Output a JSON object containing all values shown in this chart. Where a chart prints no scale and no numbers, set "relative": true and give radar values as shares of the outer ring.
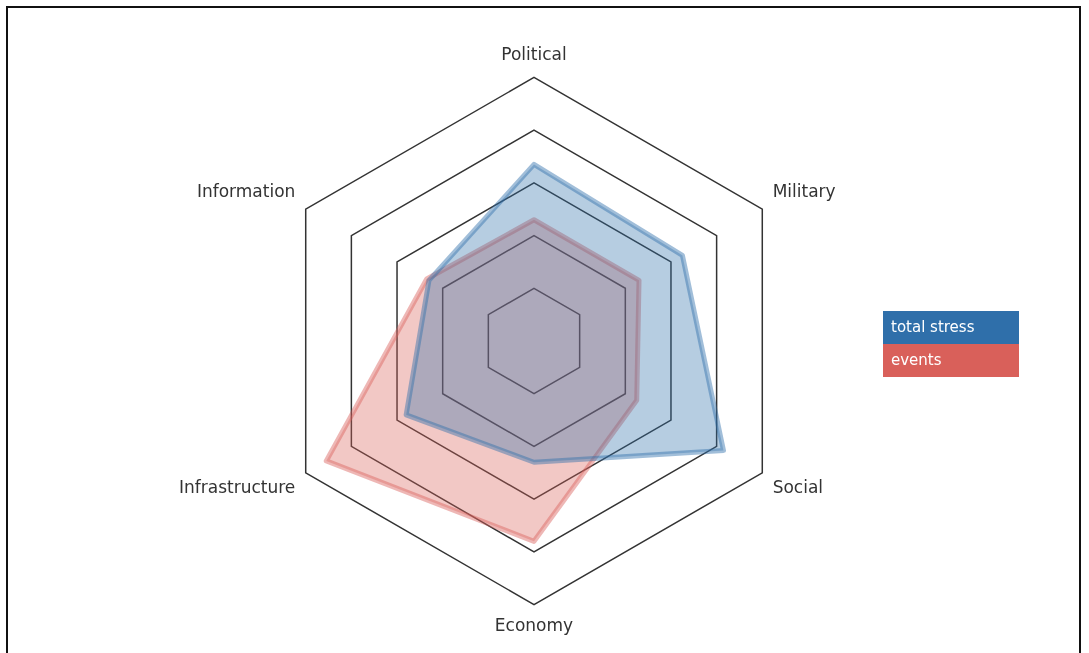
{
  "chart_data": {
    "type": "radar",
    "relative": true,
    "categories": [
      "Political",
      "Military",
      "Social",
      "Economy",
      "Infrastructure",
      "Information"
    ],
    "series": [
      {
        "name": "total stress",
        "color": "#2f6faa",
        "values": [
          0.67,
          0.65,
          0.83,
          0.46,
          0.56,
          0.46
        ]
      },
      {
        "name": "events",
        "color": "#d9605a",
        "values": [
          0.46,
          0.46,
          0.45,
          0.76,
          0.91,
          0.47
        ]
      }
    ],
    "legend": "right"
  }
}
